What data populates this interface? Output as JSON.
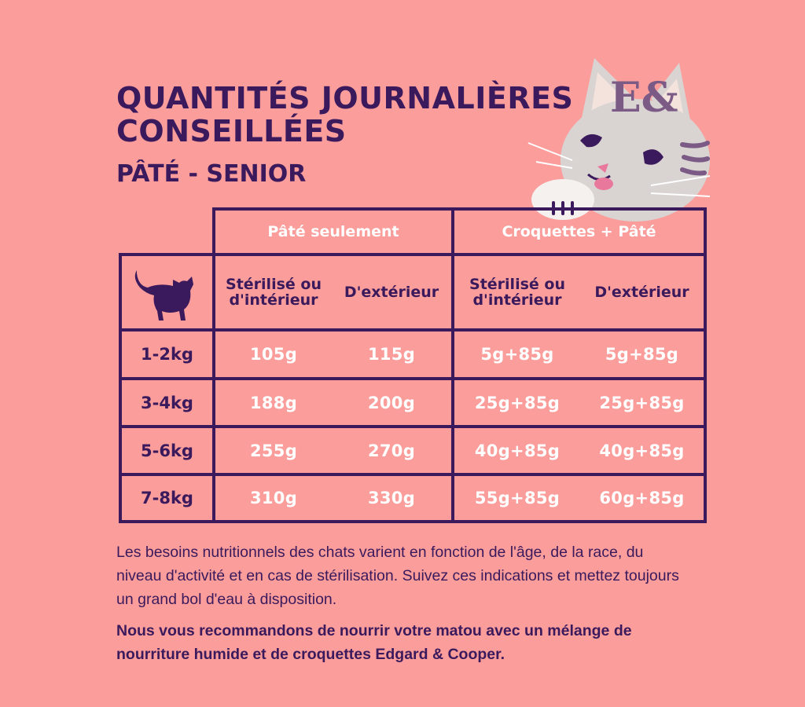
{
  "title_line1": "QUANTITÉS JOURNALIÈRES",
  "title_line2": "CONSEILLÉES",
  "subtitle": "PÂTÉ - SENIOR",
  "mascot": {
    "icon": "cat-mascot-icon",
    "logo": "E&"
  },
  "table": {
    "group_headers": [
      "Pâté seulement",
      "Croquettes + Pâté"
    ],
    "column_headers": [
      [
        "Stérilisé ou",
        "d'intérieur"
      ],
      [
        "D'extérieur"
      ],
      [
        "Stérilisé ou",
        "d'intérieur"
      ],
      [
        "D'extérieur"
      ]
    ],
    "corner_icon": "cat-silhouette-icon",
    "rows": [
      {
        "weight": "1-2kg",
        "values": [
          "105g",
          "115g",
          "5g+85g",
          "5g+85g"
        ]
      },
      {
        "weight": "3-4kg",
        "values": [
          "188g",
          "200g",
          "25g+85g",
          "25g+85g"
        ]
      },
      {
        "weight": "5-6kg",
        "values": [
          "255g",
          "270g",
          "40g+85g",
          "40g+85g"
        ]
      },
      {
        "weight": "7-8kg",
        "values": [
          "310g",
          "330g",
          "55g+85g",
          "60g+85g"
        ]
      }
    ]
  },
  "note1": "Les besoins nutritionnels des chats varient en fonction de l'âge, de la race, du niveau d'activité et en cas de stérilisation. Suivez ces indications et mettez toujours un grand bol d'eau à disposition.",
  "note2": "Nous vous recommandons de nourrir votre matou avec un mélange de nourriture humide et de croquettes Edgard & Cooper.",
  "colors": {
    "background": "#fa9d9b",
    "ink": "#3a1a5c",
    "table_text": "#ffffff"
  }
}
